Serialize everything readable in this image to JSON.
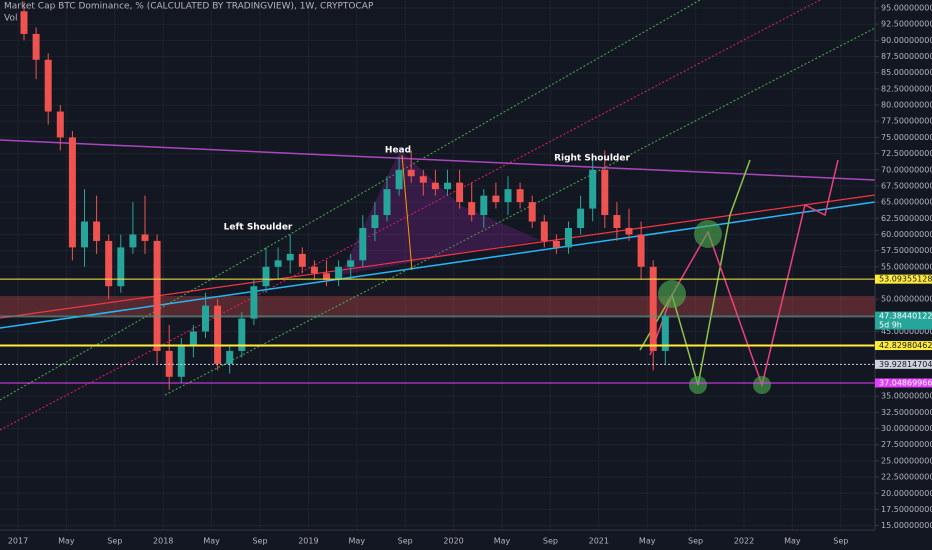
{
  "chart_data": {
    "type": "candlestick",
    "title": "Market Cap BTC Dominance, % (CALCULATED BY TRADINGVIEW), 1W, CRYPTOCAP",
    "subtitle": "Vol",
    "annotations": [
      "Left Shoulder",
      "Head",
      "Right Shoulder"
    ],
    "countdown": "5d 9h",
    "up_color": "#26a69a",
    "down_color": "#ef5350",
    "x": [
      "2017-01",
      "2017-02",
      "2017-03",
      "2017-04",
      "2017-05",
      "2017-06",
      "2017-07",
      "2017-08",
      "2017-09",
      "2017-10",
      "2017-11",
      "2017-12",
      "2018-01",
      "2018-02",
      "2018-03",
      "2018-04",
      "2018-05",
      "2018-06",
      "2018-07",
      "2018-08",
      "2018-09",
      "2018-10",
      "2018-11",
      "2018-12",
      "2019-01",
      "2019-02",
      "2019-03",
      "2019-04",
      "2019-05",
      "2019-06",
      "2019-07",
      "2019-08",
      "2019-09",
      "2019-10",
      "2019-11",
      "2019-12",
      "2020-01",
      "2020-02",
      "2020-03",
      "2020-04",
      "2020-05",
      "2020-06",
      "2020-07",
      "2020-08",
      "2020-09",
      "2020-10",
      "2020-11",
      "2020-12",
      "2021-01",
      "2021-02",
      "2021-03",
      "2021-04",
      "2021-05",
      "2021-06"
    ],
    "open": [
      94.5,
      91,
      87,
      79,
      75,
      58,
      62,
      59,
      52,
      58,
      60,
      59,
      42,
      38,
      43,
      45,
      49,
      40,
      42,
      47,
      52,
      55,
      56,
      57,
      55,
      54,
      53,
      55,
      56,
      61,
      63,
      67,
      70,
      69,
      68,
      67,
      68,
      65,
      63,
      66,
      65,
      67,
      65,
      62,
      59,
      58,
      61,
      64,
      70,
      63,
      61,
      60,
      55,
      42
    ],
    "high": [
      96,
      92,
      88,
      80,
      76,
      67,
      66,
      60,
      60,
      65,
      66,
      60,
      46,
      44,
      46,
      51,
      50,
      43,
      48,
      53,
      58,
      58,
      60,
      58,
      56,
      56,
      56,
      57,
      63,
      65,
      69,
      72,
      73,
      70,
      70,
      70,
      70,
      68,
      67,
      68,
      69,
      68,
      66,
      63,
      60,
      62,
      66,
      72,
      73,
      65,
      64,
      62,
      56,
      48
    ],
    "low": [
      90,
      84,
      77,
      73,
      56,
      55,
      57,
      50,
      51,
      57,
      57,
      40,
      36,
      37,
      41,
      44,
      39,
      38.5,
      41,
      46,
      51,
      53,
      54,
      54,
      53,
      52,
      52,
      53,
      55,
      59,
      62,
      66,
      68,
      66,
      66,
      66,
      64,
      62,
      61,
      64,
      63,
      64,
      61,
      58,
      57,
      57,
      60,
      62,
      61,
      59,
      59,
      53,
      39,
      40
    ],
    "close": [
      91,
      87,
      79,
      75,
      58,
      62,
      59,
      52,
      58,
      60,
      59,
      42,
      38,
      43,
      45,
      49,
      40,
      42,
      47,
      52,
      55,
      56,
      57,
      55,
      54,
      53,
      55,
      56,
      61,
      63,
      67,
      70,
      69,
      68,
      67,
      68,
      65,
      63,
      66,
      65,
      67,
      65,
      62,
      59,
      58,
      61,
      64,
      70,
      63,
      61,
      60,
      55,
      42,
      47.38440122
    ],
    "xticks": [
      {
        "value": "2017-01",
        "label": "2017"
      },
      {
        "value": "2017-05",
        "label": "May"
      },
      {
        "value": "2017-09",
        "label": "Sep"
      },
      {
        "value": "2018-01",
        "label": "2018"
      },
      {
        "value": "2018-05",
        "label": "May"
      },
      {
        "value": "2018-09",
        "label": "Sep"
      },
      {
        "value": "2019-01",
        "label": "2019"
      },
      {
        "value": "2019-05",
        "label": "May"
      },
      {
        "value": "2019-09",
        "label": "Sep"
      },
      {
        "value": "2020-01",
        "label": "2020"
      },
      {
        "value": "2020-05",
        "label": "May"
      },
      {
        "value": "2020-09",
        "label": "Sep"
      },
      {
        "value": "2021-01",
        "label": "2021"
      },
      {
        "value": "2021-05",
        "label": "May"
      },
      {
        "value": "2021-09",
        "label": "Sep"
      },
      {
        "value": "2022-01",
        "label": "2022"
      },
      {
        "value": "2022-05",
        "label": "May"
      },
      {
        "value": "2022-09",
        "label": "Sep"
      }
    ],
    "ylim": [
      14.32,
      96.24
    ],
    "yticks": [
      {
        "value": 15,
        "label": "15.00000000"
      },
      {
        "value": 17.5,
        "label": "17.50000000"
      },
      {
        "value": 20,
        "label": "20.00000000"
      },
      {
        "value": 22.5,
        "label": "22.50000000"
      },
      {
        "value": 25,
        "label": "25.00000000"
      },
      {
        "value": 27.5,
        "label": "27.50000000"
      },
      {
        "value": 30,
        "label": "30.00000000"
      },
      {
        "value": 32.5,
        "label": "32.50000000"
      },
      {
        "value": 35,
        "label": "35.00000000"
      },
      {
        "value": 45,
        "label": "45.00000000"
      },
      {
        "value": 50,
        "label": "50.00000000"
      },
      {
        "value": 55,
        "label": "55.00000000"
      },
      {
        "value": 57.5,
        "label": "57.50000000"
      },
      {
        "value": 60,
        "label": "60.00000000"
      },
      {
        "value": 62.5,
        "label": "62.50000000"
      },
      {
        "value": 65,
        "label": "65.00000000"
      },
      {
        "value": 67.5,
        "label": "67.50000000"
      },
      {
        "value": 70,
        "label": "70.00000000"
      },
      {
        "value": 72.5,
        "label": "72.50000000"
      },
      {
        "value": 75,
        "label": "75.00000000"
      },
      {
        "value": 77.5,
        "label": "77.50000000"
      },
      {
        "value": 80,
        "label": "80.00000000"
      },
      {
        "value": 82.5,
        "label": "82.50000000"
      },
      {
        "value": 85,
        "label": "85.00000000"
      },
      {
        "value": 87.5,
        "label": "87.50000000"
      },
      {
        "value": 90,
        "label": "90.00000000"
      },
      {
        "value": 92.5,
        "label": "92.50000000"
      },
      {
        "value": 95,
        "label": "95.00000000"
      }
    ],
    "grid": true,
    "price_lines": [
      {
        "value": 53.09355128,
        "color": "#ffeb3b"
      },
      {
        "value": 47.38440122,
        "color": "#26a69a"
      },
      {
        "value": 42.82980462,
        "color": "#ffeb3b"
      },
      {
        "value": 39.92814704,
        "color": "#d1d4dc"
      },
      {
        "value": 37.04869966,
        "color": "#e040fb"
      }
    ]
  }
}
